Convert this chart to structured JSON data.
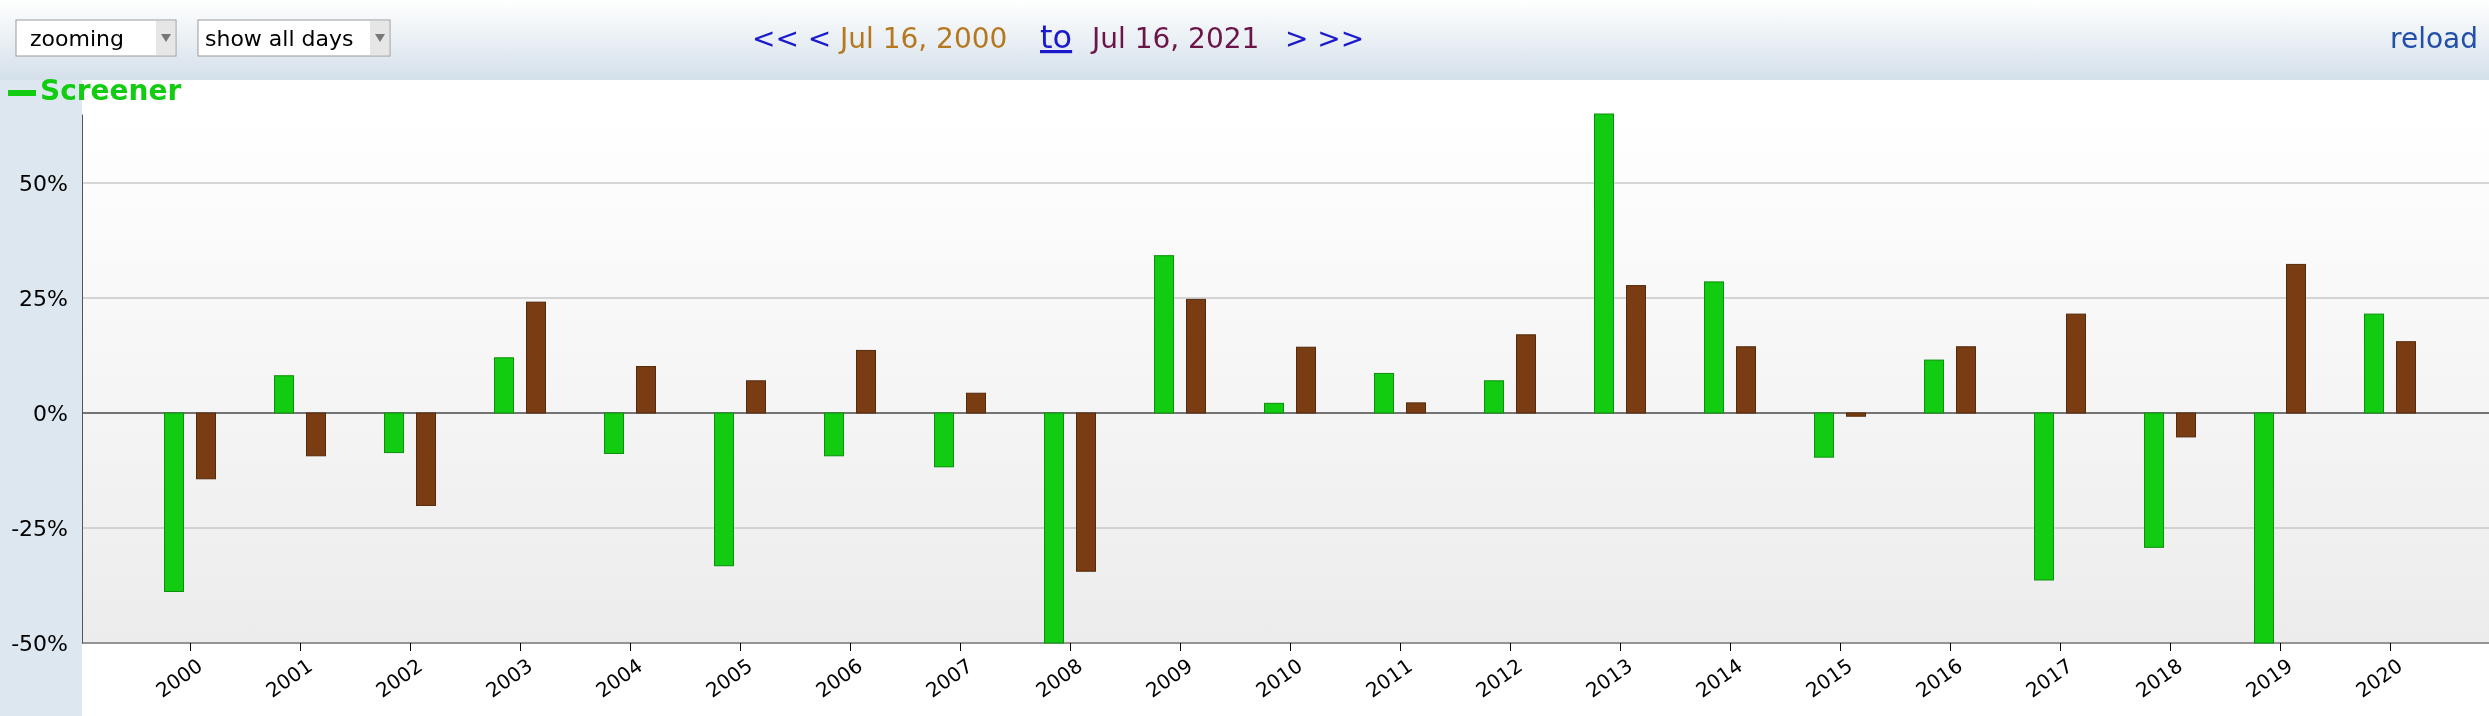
{
  "chart_data": {
    "type": "bar",
    "categories": [
      "2000",
      "2001",
      "2002",
      "2003",
      "2004",
      "2005",
      "2006",
      "2007",
      "2008",
      "2009",
      "2010",
      "2011",
      "2012",
      "2013",
      "2014",
      "2015",
      "2016",
      "2017",
      "2018",
      "2019",
      "2020"
    ],
    "series": [
      {
        "name": "Screener",
        "color": "#11cc11",
        "values": [
          -38.8,
          8.1,
          -8.6,
          12.0,
          -8.8,
          -33.2,
          -9.3,
          -11.7,
          -50,
          34.2,
          2.1,
          8.6,
          7.0,
          65,
          28.5,
          -9.6,
          11.5,
          -36.3,
          -29.2,
          -50,
          21.5
        ]
      },
      {
        "color": "#7a3c12",
        "values": [
          -14.3,
          -9.3,
          -20.1,
          24.1,
          10.1,
          7.0,
          13.6,
          4.3,
          -34.4,
          24.7,
          14.3,
          2.2,
          17.0,
          27.7,
          14.4,
          -0.7,
          14.4,
          21.5,
          -5.2,
          32.3,
          15.5
        ]
      }
    ],
    "ylim": [
      -50,
      65
    ],
    "yticks": [
      {
        "value": -50,
        "label": "-50%"
      },
      {
        "value": -25,
        "label": "-25%"
      },
      {
        "value": 0,
        "label": "0%"
      },
      {
        "value": 25,
        "label": "25%"
      },
      {
        "value": 50,
        "label": "50%"
      }
    ],
    "grid": "y",
    "legend": "top left",
    "annotations": [
      "zooming",
      "show all days",
      "<< <",
      "Jul 16, 2000",
      "to",
      "Jul 16, 2021",
      "> >>",
      "reload"
    ]
  }
}
